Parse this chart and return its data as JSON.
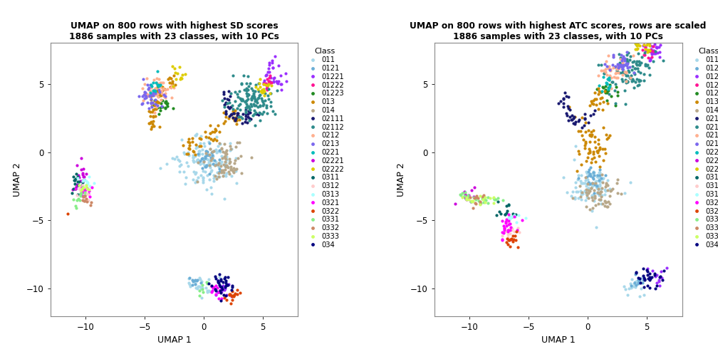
{
  "title1": "UMAP on 800 rows with highest SD scores\n1886 samples with 23 classes, with 10 PCs",
  "title2": "UMAP on 800 rows with highest ATC scores, rows are scaled\n1886 samples with 23 classes, with 10 PCs",
  "xlabel": "UMAP 1",
  "ylabel": "UMAP 2",
  "legend_title": "Class",
  "classes": [
    "011",
    "0121",
    "01221",
    "01222",
    "01223",
    "013",
    "014",
    "02111",
    "02112",
    "0212",
    "0213",
    "0221",
    "02221",
    "02222",
    "0311",
    "0312",
    "0313",
    "0321",
    "0322",
    "0331",
    "0332",
    "0333",
    "034"
  ],
  "colors": {
    "011": "#A8D8EA",
    "0121": "#6BAED6",
    "01221": "#9B30FF",
    "01222": "#FF1493",
    "01223": "#228B22",
    "013": "#CC8800",
    "014": "#B8A88A",
    "02111": "#191970",
    "02112": "#2E8B8B",
    "0212": "#FFB090",
    "0213": "#7B68EE",
    "0221": "#00BBBB",
    "02221": "#CC00DD",
    "02222": "#DDCC00",
    "0311": "#006666",
    "0312": "#FFCCCC",
    "0313": "#AAFFFF",
    "0321": "#FF00FF",
    "0322": "#DD4400",
    "0331": "#88EE88",
    "0332": "#CC8866",
    "0333": "#CCFF66",
    "034": "#000080"
  },
  "xlim": [
    -13,
    8
  ],
  "ylim": [
    -12,
    8
  ],
  "xticks": [
    -10,
    -5,
    0,
    5
  ],
  "yticks": [
    -10,
    -5,
    0,
    5
  ],
  "point_size": 9,
  "figsize": [
    10.08,
    5.04
  ],
  "dpi": 100
}
